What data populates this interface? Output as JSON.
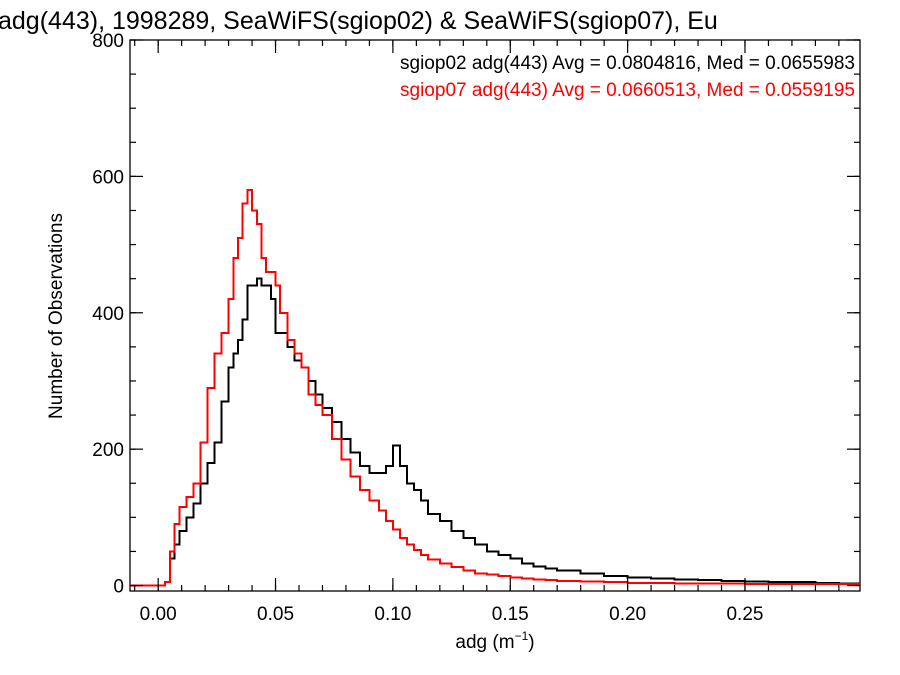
{
  "chart_data": {
    "type": "line",
    "title": "adg(443), 1998289, SeaWiFS(sgiop02) & SeaWiFS(sgiop07), Eu",
    "xlabel_main": "adg (m",
    "xlabel_sup": "−1",
    "xlabel_end": ")",
    "ylabel": "Number of Observations",
    "xlim": [
      -0.012,
      0.299
    ],
    "ylim": [
      -8,
      800
    ],
    "xticks": [
      0.0,
      0.05,
      0.1,
      0.15,
      0.2,
      0.25
    ],
    "xtick_labels": [
      "0.00",
      "0.05",
      "0.10",
      "0.15",
      "0.20",
      "0.25"
    ],
    "yticks": [
      0,
      200,
      400,
      600,
      800
    ],
    "ytick_labels": [
      "0",
      "200",
      "400",
      "600",
      "800"
    ],
    "x_minor_step": 0.01,
    "y_minor_step": 50,
    "legend": [
      {
        "text": "sgiop02 adg(443) Avg = 0.0804816, Med = 0.0655983",
        "color": "#000000"
      },
      {
        "text": "sgiop07 adg(443) Avg = 0.0660513, Med = 0.0559195",
        "color": "#ff0000"
      }
    ],
    "series": [
      {
        "color": "#000000",
        "x": [
          -0.012,
          0.0,
          0.003,
          0.005,
          0.007,
          0.009,
          0.012,
          0.015,
          0.018,
          0.021,
          0.024,
          0.027,
          0.03,
          0.032,
          0.034,
          0.036,
          0.038,
          0.04,
          0.042,
          0.044,
          0.046,
          0.048,
          0.05,
          0.052,
          0.055,
          0.058,
          0.061,
          0.064,
          0.067,
          0.07,
          0.074,
          0.078,
          0.082,
          0.086,
          0.09,
          0.094,
          0.097,
          0.1,
          0.103,
          0.106,
          0.109,
          0.112,
          0.115,
          0.12,
          0.125,
          0.13,
          0.135,
          0.14,
          0.145,
          0.15,
          0.155,
          0.16,
          0.165,
          0.17,
          0.18,
          0.19,
          0.2,
          0.21,
          0.22,
          0.23,
          0.24,
          0.25,
          0.26,
          0.27,
          0.28,
          0.29,
          0.299
        ],
        "y": [
          0,
          0,
          5,
          40,
          60,
          80,
          100,
          120,
          150,
          180,
          210,
          270,
          320,
          340,
          360,
          390,
          440,
          440,
          450,
          440,
          440,
          420,
          370,
          370,
          350,
          330,
          320,
          300,
          280,
          260,
          240,
          215,
          195,
          175,
          165,
          165,
          175,
          205,
          175,
          150,
          140,
          125,
          105,
          95,
          80,
          70,
          60,
          50,
          45,
          40,
          32,
          28,
          25,
          22,
          18,
          14,
          12,
          10,
          9,
          8,
          7,
          6,
          5,
          5,
          4,
          3,
          3
        ]
      },
      {
        "color": "#ff0000",
        "x": [
          -0.012,
          0.0,
          0.003,
          0.005,
          0.007,
          0.009,
          0.012,
          0.015,
          0.018,
          0.021,
          0.024,
          0.027,
          0.03,
          0.032,
          0.034,
          0.036,
          0.038,
          0.04,
          0.042,
          0.044,
          0.046,
          0.048,
          0.05,
          0.052,
          0.055,
          0.058,
          0.061,
          0.064,
          0.067,
          0.07,
          0.074,
          0.078,
          0.082,
          0.086,
          0.09,
          0.094,
          0.097,
          0.1,
          0.103,
          0.106,
          0.109,
          0.112,
          0.115,
          0.12,
          0.125,
          0.13,
          0.135,
          0.14,
          0.145,
          0.15,
          0.155,
          0.16,
          0.165,
          0.17,
          0.18,
          0.19,
          0.2,
          0.21,
          0.22,
          0.23,
          0.24,
          0.25,
          0.26,
          0.27,
          0.28,
          0.29,
          0.299
        ],
        "y": [
          0,
          0,
          5,
          50,
          90,
          115,
          130,
          150,
          210,
          290,
          340,
          370,
          420,
          480,
          510,
          560,
          580,
          550,
          530,
          480,
          460,
          460,
          440,
          400,
          360,
          340,
          320,
          280,
          265,
          250,
          215,
          185,
          160,
          140,
          125,
          110,
          95,
          82,
          70,
          60,
          52,
          45,
          38,
          32,
          27,
          22,
          18,
          16,
          14,
          12,
          10,
          9,
          8,
          7,
          6,
          5,
          4,
          4,
          3,
          3,
          3,
          2,
          2,
          2,
          2,
          2,
          2
        ]
      }
    ]
  }
}
